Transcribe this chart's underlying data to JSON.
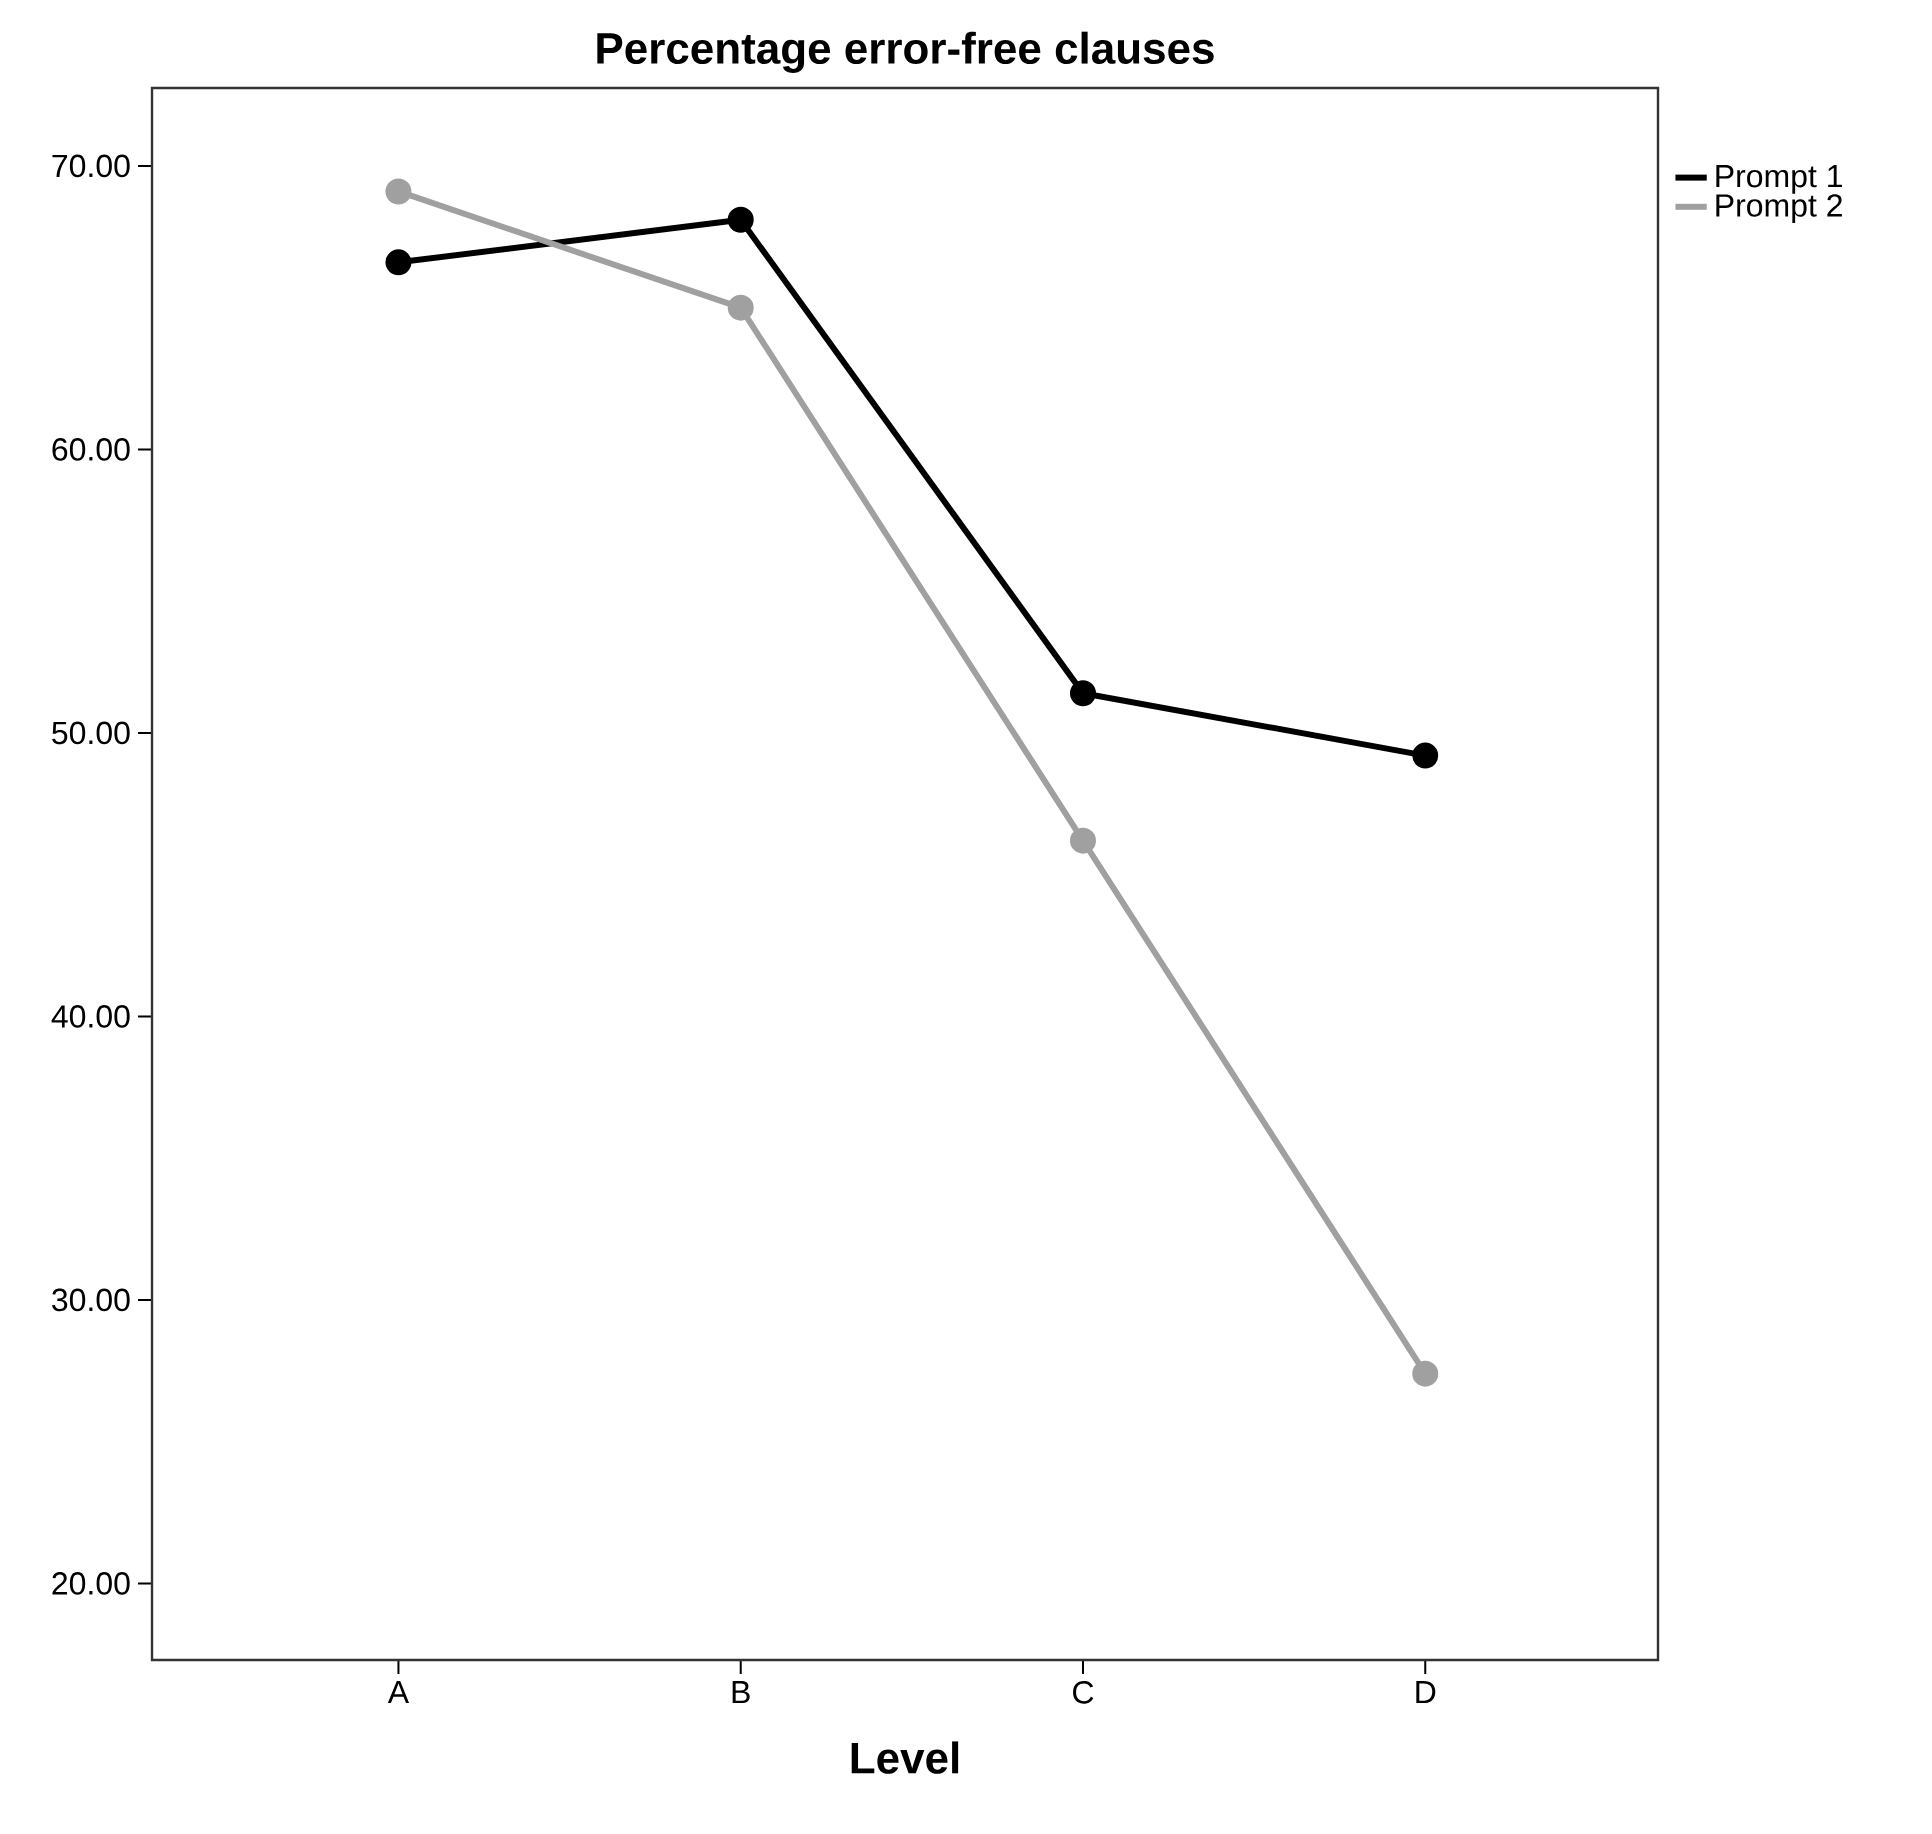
{
  "chart_data": {
    "type": "line",
    "title": "Percentage error-free clauses",
    "xlabel": "Level",
    "categories": [
      "A",
      "B",
      "C",
      "D"
    ],
    "series": [
      {
        "name": "Prompt 1",
        "color": "#000000",
        "values": [
          66.6,
          68.1,
          51.4,
          49.2
        ]
      },
      {
        "name": "Prompt 2",
        "color": "#a0a0a0",
        "values": [
          69.1,
          65.0,
          46.2,
          27.4
        ]
      }
    ],
    "ylim": [
      17.3,
      72.75
    ],
    "yticks": [
      {
        "value": 20,
        "label": "20.00"
      },
      {
        "value": 30,
        "label": "30.00"
      },
      {
        "value": 40,
        "label": "40.00"
      },
      {
        "value": 50,
        "label": "50.00"
      },
      {
        "value": 60,
        "label": "60.00"
      },
      {
        "value": 70,
        "label": "70.00"
      }
    ],
    "grid": false,
    "legend": "top right",
    "marker": "circle",
    "line_style": "solid"
  }
}
